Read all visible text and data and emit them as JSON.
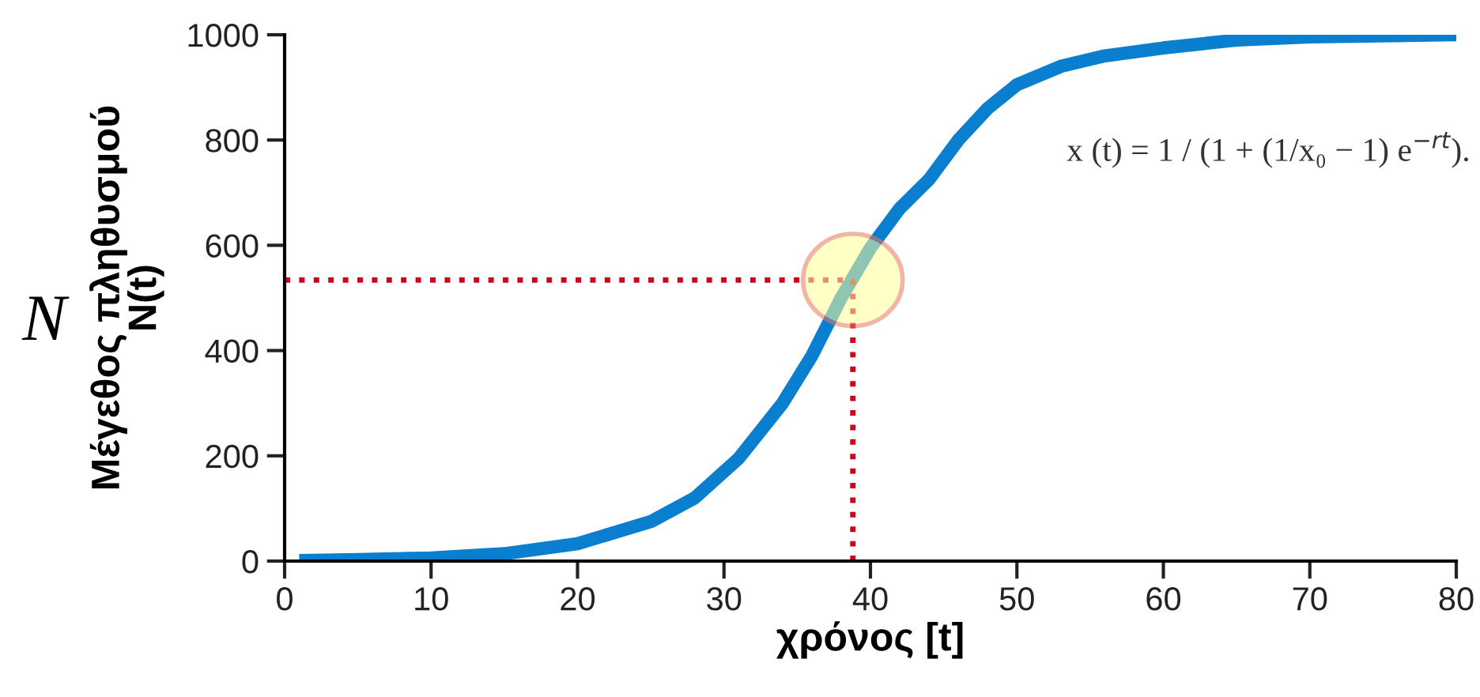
{
  "chart_data": {
    "type": "line",
    "xlabel": "χρόνος [t]",
    "ylabel": "Μέγεθος πληθυσμού\nN(t)",
    "annotations": [
      "N",
      "x (t) = 1 / (1 + (1/x₀ − 1) e$^{−rt}$)."
    ],
    "x": [
      1,
      5,
      10,
      15,
      20,
      25,
      28,
      31,
      34,
      36,
      38,
      40,
      42,
      44,
      46,
      48,
      50,
      53,
      56,
      60,
      65,
      70,
      80
    ],
    "series": [
      {
        "color": "#0a7fd0",
        "values": [
          1,
          3,
          6,
          14,
          33,
          75,
          120,
          195,
          300,
          390,
          500,
          595,
          670,
          725,
          800,
          860,
          905,
          940,
          960,
          975,
          990,
          996,
          1000
        ]
      }
    ],
    "xlim": [
      0,
      80
    ],
    "xticks": [
      0,
      10,
      20,
      30,
      40,
      50,
      60,
      70,
      80
    ],
    "ylim": [
      0,
      1000
    ],
    "yticks": [
      0,
      200,
      400,
      600,
      800,
      1000
    ],
    "ref_lines": [
      {
        "axis": "y",
        "value": 534,
        "color": "#d0021b",
        "line_style": "dotted"
      },
      {
        "axis": "x",
        "value": 38.8,
        "color": "#d0021b",
        "line_style": "dotted"
      }
    ],
    "grid": false,
    "legend": false,
    "marker": "none",
    "line_style": "solid"
  }
}
